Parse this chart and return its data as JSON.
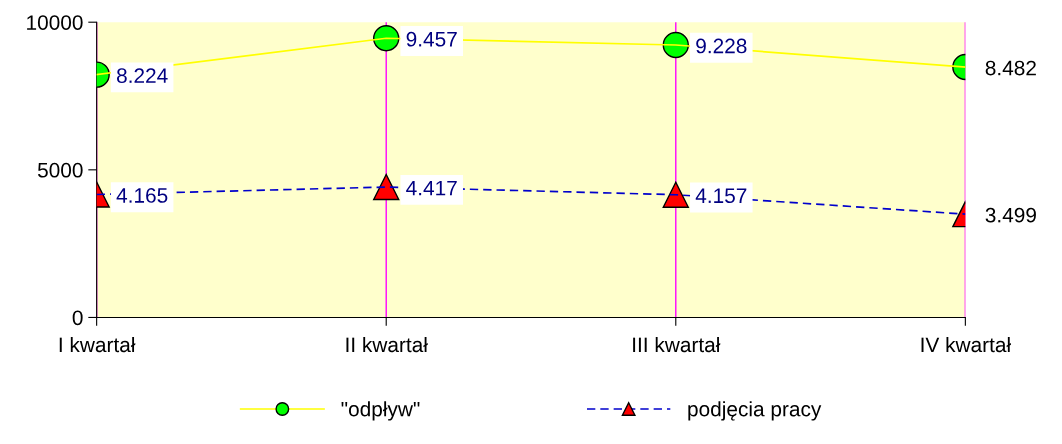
{
  "chart_data": {
    "type": "line",
    "categories": [
      "I kwartał",
      "II kwartał",
      "III kwartał",
      "IV kwartał"
    ],
    "series": [
      {
        "name": "\"odpływ\"",
        "color": "#ffff00",
        "colors": [
          "#00ff00",
          "#00ff00",
          "#00ff00",
          "#00ff00"
        ],
        "marker": "circle",
        "line_style": "solid",
        "values": [
          8224,
          9457,
          9228,
          8482
        ],
        "value_labels": [
          "8.224",
          "9.457",
          "9.228",
          "8.482"
        ]
      },
      {
        "name": "podjęcia pracy",
        "color": "#0000cc",
        "colors": [
          "#ff0000",
          "#ff0000",
          "#ff0000",
          "#ff0000"
        ],
        "marker": "triangle",
        "line_style": "dashed",
        "values": [
          4165,
          4417,
          4157,
          3499
        ],
        "value_labels": [
          "4.165",
          "4.417",
          "4.157",
          "3.499"
        ]
      }
    ],
    "ylim": [
      0,
      10000
    ],
    "yticks": [
      0,
      5000,
      10000
    ],
    "grid": "x",
    "legend": "bottom"
  }
}
